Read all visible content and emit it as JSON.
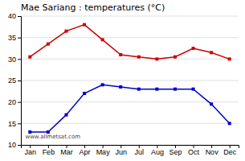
{
  "chart_data": {
    "type": "line",
    "title": "Mae Sariang : temperatures (°C)",
    "categories": [
      "Jan",
      "Feb",
      "Mar",
      "Apr",
      "May",
      "Jun",
      "Jul",
      "Aug",
      "Sep",
      "Oct",
      "Nov",
      "Dec"
    ],
    "series": [
      {
        "color": "#cc0000",
        "marker": "square",
        "values": [
          30.5,
          33.5,
          36.5,
          38.0,
          34.5,
          31.0,
          30.5,
          30.0,
          30.5,
          32.5,
          31.5,
          30.0
        ]
      },
      {
        "color": "#0000cc",
        "marker": "square",
        "values": [
          13.0,
          13.0,
          17.0,
          22.0,
          24.0,
          23.5,
          23.0,
          23.0,
          23.0,
          23.0,
          19.5,
          15.0
        ]
      }
    ],
    "ylim": [
      10,
      40
    ],
    "yticks": [
      10,
      15,
      20,
      25,
      30,
      35,
      40
    ],
    "grid": true,
    "annotations": [
      "www.allmetsat.com"
    ]
  }
}
